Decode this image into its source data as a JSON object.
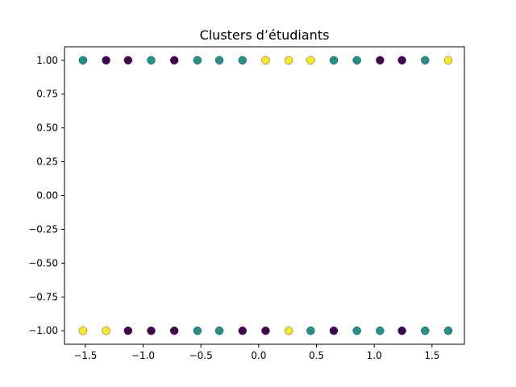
{
  "chart_data": {
    "type": "scatter",
    "title": "Clusters d’étudiants",
    "xlabel": "",
    "ylabel": "",
    "xlim": [
      -1.68,
      1.78
    ],
    "ylim": [
      -1.1,
      1.1
    ],
    "xticks": [
      -1.5,
      -1.0,
      -0.5,
      0.0,
      0.5,
      1.0,
      1.5
    ],
    "xtick_labels": [
      "−1.5",
      "−1.0",
      "−0.5",
      "0.0",
      "0.5",
      "1.0",
      "1.5"
    ],
    "yticks": [
      1.0,
      0.75,
      0.5,
      0.25,
      0.0,
      -0.25,
      -0.5,
      -0.75,
      -1.0
    ],
    "ytick_labels": [
      "1.00",
      "0.75",
      "0.50",
      "0.25",
      "0.00",
      "−0.25",
      "−0.50",
      "−0.75",
      "−1.00"
    ],
    "grid": false,
    "colors": {
      "0": "#440154",
      "1": "#21918c",
      "2": "#fde725"
    },
    "points": [
      {
        "x": -1.52,
        "y": 1.0,
        "c": 1
      },
      {
        "x": -1.32,
        "y": 1.0,
        "c": 0
      },
      {
        "x": -1.13,
        "y": 1.0,
        "c": 0
      },
      {
        "x": -0.93,
        "y": 1.0,
        "c": 1
      },
      {
        "x": -0.73,
        "y": 1.0,
        "c": 0
      },
      {
        "x": -0.53,
        "y": 1.0,
        "c": 1
      },
      {
        "x": -0.34,
        "y": 1.0,
        "c": 1
      },
      {
        "x": -0.14,
        "y": 1.0,
        "c": 1
      },
      {
        "x": 0.06,
        "y": 1.0,
        "c": 2
      },
      {
        "x": 0.26,
        "y": 1.0,
        "c": 2
      },
      {
        "x": 0.45,
        "y": 1.0,
        "c": 2
      },
      {
        "x": 0.65,
        "y": 1.0,
        "c": 1
      },
      {
        "x": 0.85,
        "y": 1.0,
        "c": 1
      },
      {
        "x": 1.05,
        "y": 1.0,
        "c": 0
      },
      {
        "x": 1.24,
        "y": 1.0,
        "c": 0
      },
      {
        "x": 1.44,
        "y": 1.0,
        "c": 1
      },
      {
        "x": 1.64,
        "y": 1.0,
        "c": 2
      },
      {
        "x": -1.52,
        "y": -1.0,
        "c": 2
      },
      {
        "x": -1.32,
        "y": -1.0,
        "c": 2
      },
      {
        "x": -1.13,
        "y": -1.0,
        "c": 0
      },
      {
        "x": -0.93,
        "y": -1.0,
        "c": 0
      },
      {
        "x": -0.73,
        "y": -1.0,
        "c": 0
      },
      {
        "x": -0.53,
        "y": -1.0,
        "c": 1
      },
      {
        "x": -0.34,
        "y": -1.0,
        "c": 1
      },
      {
        "x": -0.14,
        "y": -1.0,
        "c": 0
      },
      {
        "x": 0.06,
        "y": -1.0,
        "c": 0
      },
      {
        "x": 0.26,
        "y": -1.0,
        "c": 2
      },
      {
        "x": 0.45,
        "y": -1.0,
        "c": 1
      },
      {
        "x": 0.65,
        "y": -1.0,
        "c": 0
      },
      {
        "x": 0.85,
        "y": -1.0,
        "c": 1
      },
      {
        "x": 1.05,
        "y": -1.0,
        "c": 1
      },
      {
        "x": 1.24,
        "y": -1.0,
        "c": 0
      },
      {
        "x": 1.44,
        "y": -1.0,
        "c": 1
      },
      {
        "x": 1.64,
        "y": -1.0,
        "c": 1
      }
    ]
  }
}
